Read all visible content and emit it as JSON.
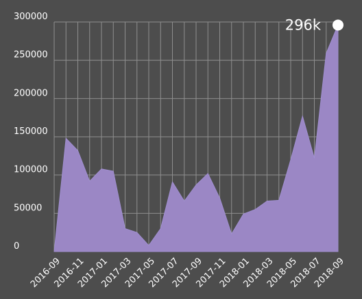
{
  "colors": {
    "background": "#4d4d4d",
    "grid": "#8f8f8f",
    "area_fill": "#9b87c5",
    "area_stroke": "#a08fd0",
    "text": "#ffffff",
    "end_marker": "#ffffff"
  },
  "chart_data": {
    "type": "area",
    "title": "",
    "xlabel": "",
    "ylabel": "",
    "x": [
      "2016-09",
      "2016-10",
      "2016-11",
      "2016-12",
      "2017-01",
      "2017-02",
      "2017-03",
      "2017-04",
      "2017-05",
      "2017-06",
      "2017-07",
      "2017-08",
      "2017-09",
      "2017-10",
      "2017-11",
      "2017-12",
      "2018-01",
      "2018-02",
      "2018-03",
      "2018-04",
      "2018-05",
      "2018-06",
      "2018-07",
      "2018-08",
      "2018-09"
    ],
    "series": [
      {
        "values": [
          0,
          148000,
          132000,
          92000,
          108000,
          105000,
          30000,
          25000,
          8000,
          30000,
          91000,
          66000,
          87000,
          102000,
          70000,
          23000,
          49000,
          55000,
          66000,
          67000,
          120000,
          177000,
          122000,
          259000,
          296000
        ]
      }
    ],
    "x_tick_labels": [
      "2016-09",
      "2016-11",
      "2017-01",
      "2017-03",
      "2017-05",
      "2017-07",
      "2017-09",
      "2017-11",
      "2018-01",
      "2018-03",
      "2018-05",
      "2018-07",
      "2018-09"
    ],
    "y_tick_labels": [
      "0",
      "50000",
      "100000",
      "150000",
      "200000",
      "250000",
      "300000"
    ],
    "y_ticks": [
      0,
      50000,
      100000,
      150000,
      200000,
      250000,
      300000
    ],
    "ylim": [
      0,
      300000
    ],
    "grid": true,
    "legend": "none",
    "end_label": "296k"
  }
}
